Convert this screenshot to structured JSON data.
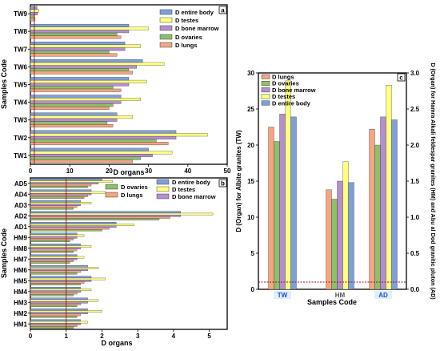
{
  "chart_data": [
    {
      "panel": "a",
      "type": "bar",
      "orientation": "horizontal",
      "xlabel": "D organs",
      "ylabel": "Samples Code",
      "xlim": [
        0,
        50
      ],
      "xticks": [
        0,
        10,
        20,
        30,
        40,
        50
      ],
      "reference_line": 1,
      "categories": [
        "TW1",
        "TW2",
        "TW3",
        "TW4",
        "TW5",
        "TW6",
        "TW7",
        "TW8",
        "TW9"
      ],
      "series": [
        {
          "name": "D lungs",
          "color": "#f4a582",
          "values": [
            26,
            35,
            21,
            20,
            23,
            26,
            22,
            23,
            1.2
          ]
        },
        {
          "name": "D ovaries",
          "color": "#8fbf6a",
          "values": [
            28,
            32,
            19.5,
            21,
            21,
            25,
            20,
            22,
            1.1
          ]
        },
        {
          "name": "D bone marrow",
          "color": "#b48fd0",
          "values": [
            31,
            37,
            22,
            23,
            25,
            27,
            24,
            25,
            1.8
          ]
        },
        {
          "name": "D testes",
          "color": "#ffff80",
          "values": [
            36,
            45,
            26,
            28,
            29.5,
            34,
            28,
            30,
            2.2
          ]
        },
        {
          "name": "D entire body",
          "color": "#7f9fd8",
          "values": [
            30,
            37,
            22,
            23,
            25,
            28.5,
            24,
            25,
            1.7
          ]
        }
      ],
      "legend": [
        "D entire body",
        "D testes",
        "D bone marrow",
        "D ovaries",
        "D lungs"
      ],
      "legend_position": "top-right"
    },
    {
      "panel": "b",
      "type": "bar",
      "orientation": "horizontal",
      "xlabel": "D organs",
      "ylabel": "Samples Code",
      "xlim": [
        0,
        5.5
      ],
      "xticks": [
        0,
        1,
        2,
        3,
        4,
        5
      ],
      "reference_line": 1,
      "categories": [
        "HM1",
        "HM2",
        "HM3",
        "HM4",
        "HM5",
        "HM6",
        "HM7",
        "HM8",
        "HM9",
        "AD1",
        "AD2",
        "AD3",
        "AD4",
        "AD5"
      ],
      "series": [
        {
          "name": "D ovaries",
          "color": "#8fbf6a",
          "values": [
            1.2,
            1.3,
            1.3,
            1.2,
            1.4,
            1.3,
            1.1,
            1.2,
            1.1,
            2.0,
            3.6,
            1.2,
            1.5,
            1.6
          ]
        },
        {
          "name": "D lungs",
          "color": "#f4a582",
          "values": [
            1.3,
            1.4,
            1.4,
            1.3,
            1.5,
            1.4,
            1.2,
            1.3,
            1.2,
            2.2,
            3.9,
            1.3,
            1.6,
            1.7
          ]
        },
        {
          "name": "D bone marrow",
          "color": "#b48fd0",
          "values": [
            1.4,
            1.6,
            1.6,
            1.4,
            1.7,
            1.6,
            1.3,
            1.4,
            1.3,
            2.4,
            4.2,
            1.4,
            1.7,
            1.9
          ]
        },
        {
          "name": "D testes",
          "color": "#ffff80",
          "values": [
            1.6,
            2.0,
            1.9,
            1.7,
            2.1,
            1.9,
            1.5,
            1.7,
            1.5,
            2.9,
            5.1,
            1.7,
            2.1,
            2.3
          ]
        },
        {
          "name": "D entire body",
          "color": "#7f9fd8",
          "values": [
            1.4,
            1.6,
            1.6,
            1.4,
            1.7,
            1.6,
            1.3,
            1.4,
            1.3,
            2.4,
            4.2,
            1.4,
            1.7,
            2.0
          ]
        }
      ],
      "legend": [
        "D ovaries",
        "D lungs",
        "D entire body",
        "D testes",
        "D bone marrow"
      ],
      "legend_position": "top-right"
    },
    {
      "panel": "c",
      "type": "bar",
      "orientation": "vertical",
      "xlabel": "Samples Code",
      "ylabel": "D (Organ) for Albite granites (TW)",
      "y2label": "D (Organ) for Hamra Alkali feldespar granites (HM) and Abu al Dod granitic pluton (AD)",
      "ylim": [
        0,
        30
      ],
      "yticks": [
        0,
        5,
        10,
        15,
        20,
        25,
        30
      ],
      "y2lim": [
        0,
        3.0
      ],
      "y2ticks": [
        "0.0",
        "0.5",
        "1.0",
        "1.5",
        "2.0",
        "2.5",
        "3.0"
      ],
      "reference_line": 1,
      "categories": [
        "TW",
        "HM",
        "AD"
      ],
      "series": [
        {
          "name": "D lungs",
          "color": "#f4a582",
          "values": [
            22.5,
            13.8,
            22.2
          ]
        },
        {
          "name": "D ovaries",
          "color": "#8fbf6a",
          "values": [
            20.5,
            12.5,
            20.0
          ]
        },
        {
          "name": "D bone marrow",
          "color": "#b48fd0",
          "values": [
            24.3,
            15.0,
            23.9
          ]
        },
        {
          "name": "D testes",
          "color": "#ffff80",
          "values": [
            28.9,
            17.7,
            28.3
          ]
        },
        {
          "name": "D entire body",
          "color": "#7f9fd8",
          "values": [
            23.9,
            14.8,
            23.5
          ]
        }
      ],
      "legend": [
        "D lungs",
        "D ovaries",
        "D bone marrow",
        "D testes",
        "D entire body"
      ],
      "legend_position": "top-left"
    }
  ],
  "panel_labels": {
    "a": "a",
    "b": "b",
    "c": "c"
  }
}
